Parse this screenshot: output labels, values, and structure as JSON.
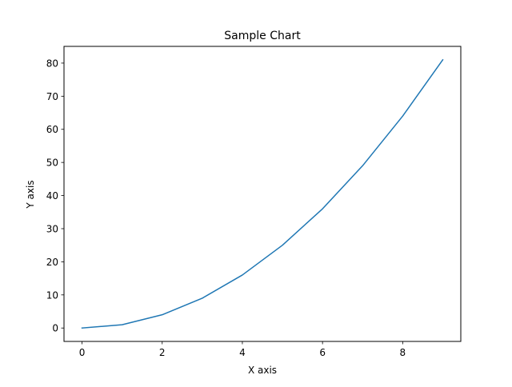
{
  "chart_data": {
    "type": "line",
    "title": "Sample Chart",
    "xlabel": "X axis",
    "ylabel": "Y axis",
    "xlim": [
      -0.45,
      9.45
    ],
    "ylim": [
      -4.05,
      85.05
    ],
    "x_ticks": [
      0,
      2,
      4,
      6,
      8
    ],
    "y_ticks": [
      0,
      10,
      20,
      30,
      40,
      50,
      60,
      70,
      80
    ],
    "grid": false,
    "series": [
      {
        "x": [
          0,
          1,
          2,
          3,
          4,
          5,
          6,
          7,
          8,
          9
        ],
        "values": [
          0,
          1,
          4,
          9,
          16,
          25,
          36,
          49,
          64,
          81
        ],
        "color": "#1f77b4"
      }
    ]
  }
}
